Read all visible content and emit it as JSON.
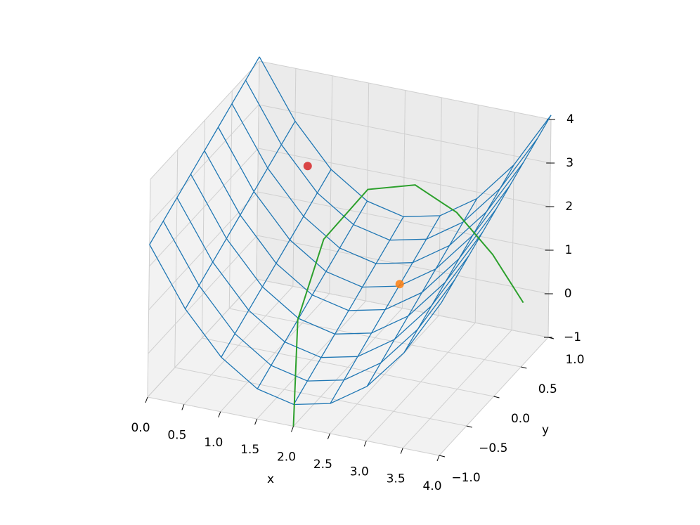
{
  "chart_data": {
    "type": "wireframe3d",
    "xlabel": "x",
    "ylabel": "y",
    "x": [
      0,
      0.5,
      1,
      1.5,
      2,
      2.5,
      3,
      3.5,
      4
    ],
    "y": [
      -1,
      -0.75,
      -0.5,
      -0.25,
      0,
      0.25,
      0.5,
      0.75,
      1
    ],
    "z": [
      [
        2.5,
        1.19,
        0.25,
        -0.31,
        -0.5,
        -0.31,
        0.25,
        1.19,
        2.5
      ],
      [
        2.7,
        1.39,
        0.45,
        -0.11,
        -0.3,
        -0.11,
        0.45,
        1.39,
        2.7
      ],
      [
        2.9,
        1.59,
        0.65,
        0.09,
        -0.1,
        0.09,
        0.65,
        1.59,
        2.9
      ],
      [
        3.1,
        1.79,
        0.85,
        0.29,
        0.1,
        0.29,
        0.85,
        1.79,
        3.1
      ],
      [
        3.3,
        1.99,
        1.05,
        0.49,
        0.3,
        0.49,
        1.05,
        1.99,
        3.3
      ],
      [
        3.5,
        2.19,
        1.25,
        0.69,
        0.5,
        0.69,
        1.25,
        2.19,
        3.5
      ],
      [
        3.7,
        2.39,
        1.45,
        0.89,
        0.7,
        0.89,
        1.45,
        2.39,
        3.7
      ],
      [
        3.9,
        2.59,
        1.65,
        1.09,
        0.9,
        1.09,
        1.65,
        2.59,
        3.9
      ],
      [
        4.1,
        2.79,
        1.85,
        1.29,
        1.1,
        1.29,
        1.85,
        2.79,
        4.1
      ]
    ],
    "color": "#1f77b4",
    "curves": [
      {
        "color": "#2ca02c",
        "x": [
          2.0,
          1.6,
          1.5,
          1.8,
          2.3,
          2.8,
          3.3,
          3.8
        ],
        "y": [
          -1.0,
          -0.4,
          0.2,
          0.6,
          0.8,
          0.9,
          0.9,
          0.8
        ],
        "z": [
          -1.0,
          0.5,
          1.5,
          2.2,
          2.2,
          1.6,
          0.8,
          0.0
        ]
      }
    ],
    "points": [
      {
        "color": "#d62728",
        "x": 0.9,
        "y": 0.7,
        "z": 2.3
      },
      {
        "color": "#ff7f0e",
        "x": 2.4,
        "y": 0.4,
        "z": 0.5
      }
    ],
    "xlim": [
      0,
      4
    ],
    "ylim": [
      -1,
      1
    ],
    "zlim": [
      -1,
      4
    ],
    "xticks": [
      {
        "value": 0,
        "label": "0.0"
      },
      0.5,
      {
        "value": 1,
        "label": "1.0"
      },
      1.5,
      {
        "value": 2,
        "label": "2.0"
      },
      2.5,
      {
        "value": 3,
        "label": "3.0"
      },
      3.5,
      {
        "value": 4,
        "label": "4.0"
      }
    ],
    "yticks": [
      {
        "value": -1,
        "label": "−1.0"
      },
      {
        "value": -0.5,
        "label": "−0.5"
      },
      {
        "value": 0,
        "label": "0.0"
      },
      0.5,
      {
        "value": 1,
        "label": "1.0"
      }
    ],
    "zticks": [
      {
        "value": -1,
        "label": "−1"
      },
      0,
      1,
      2,
      3,
      4
    ],
    "grid": true
  }
}
